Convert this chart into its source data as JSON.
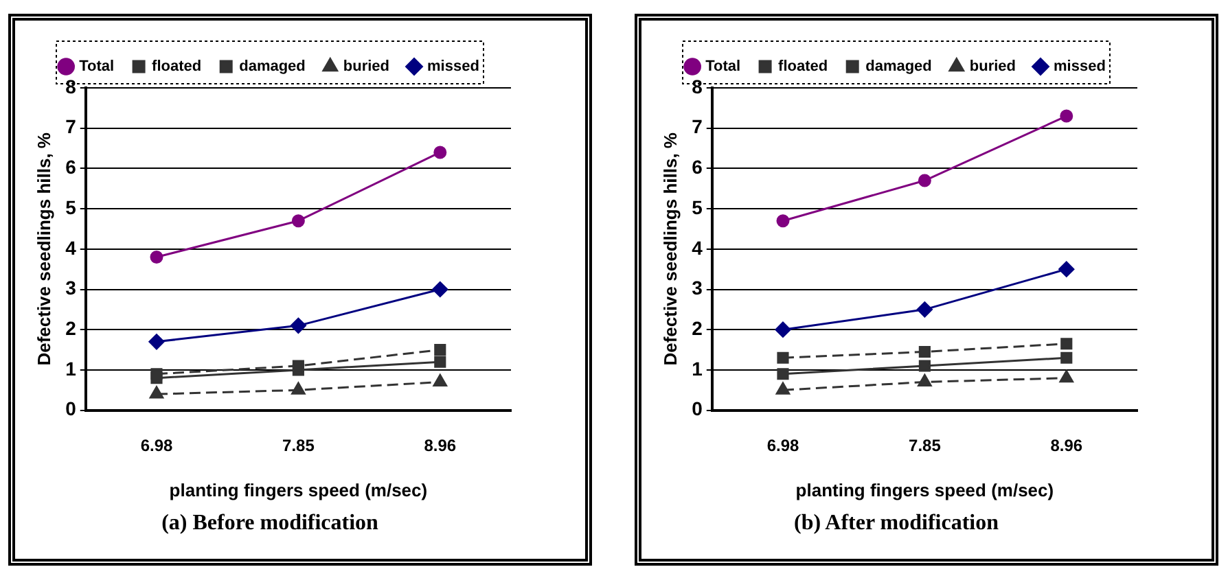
{
  "chart_data": [
    {
      "type": "line",
      "title": "(a) Before modification",
      "xlabel": "planting fingers speed (m/sec)",
      "ylabel": "Defective seedlings hills, %",
      "categories": [
        "6.98",
        "7.85",
        "8.96"
      ],
      "ylim": [
        0,
        8
      ],
      "yticks": [
        0,
        1,
        2,
        3,
        4,
        5,
        6,
        7,
        8
      ],
      "grid": "y",
      "legend": "top",
      "series": [
        {
          "name": "missed",
          "color": "#000080",
          "marker": "diamond",
          "line_style": "solid",
          "values": [
            1.7,
            2.1,
            3.0
          ]
        },
        {
          "name": "buried",
          "color": "#333333",
          "marker": "triangle",
          "line_style": "dashed",
          "values": [
            0.4,
            0.5,
            0.7
          ]
        },
        {
          "name": "damaged",
          "color": "#333333",
          "marker": "square",
          "line_style": "solid",
          "values": [
            0.8,
            1.0,
            1.2
          ]
        },
        {
          "name": "floated",
          "color": "#333333",
          "marker": "square",
          "line_style": "dashed",
          "values": [
            0.9,
            1.1,
            1.5
          ]
        },
        {
          "name": "Total",
          "color": "#800080",
          "marker": "circle",
          "line_style": "solid",
          "values": [
            3.8,
            4.7,
            6.4
          ]
        }
      ]
    },
    {
      "type": "line",
      "title": "(b) After modification",
      "xlabel": "planting fingers speed (m/sec)",
      "ylabel": "Defective seedlings hills, %",
      "categories": [
        "6.98",
        "7.85",
        "8.96"
      ],
      "ylim": [
        0,
        8
      ],
      "yticks": [
        0,
        1,
        2,
        3,
        4,
        5,
        6,
        7,
        8
      ],
      "grid": "y",
      "legend": "top",
      "series": [
        {
          "name": "missed",
          "color": "#000080",
          "marker": "diamond",
          "line_style": "solid",
          "values": [
            2.0,
            2.5,
            3.5
          ]
        },
        {
          "name": "buried",
          "color": "#333333",
          "marker": "triangle",
          "line_style": "dashed",
          "values": [
            0.5,
            0.7,
            0.8
          ]
        },
        {
          "name": "damaged",
          "color": "#333333",
          "marker": "square",
          "line_style": "solid",
          "values": [
            0.9,
            1.1,
            1.3
          ]
        },
        {
          "name": "floated",
          "color": "#333333",
          "marker": "square",
          "line_style": "dashed",
          "values": [
            1.3,
            1.45,
            1.65
          ]
        },
        {
          "name": "Total",
          "color": "#800080",
          "marker": "circle",
          "line_style": "solid",
          "values": [
            4.7,
            5.7,
            7.3
          ]
        }
      ]
    }
  ]
}
